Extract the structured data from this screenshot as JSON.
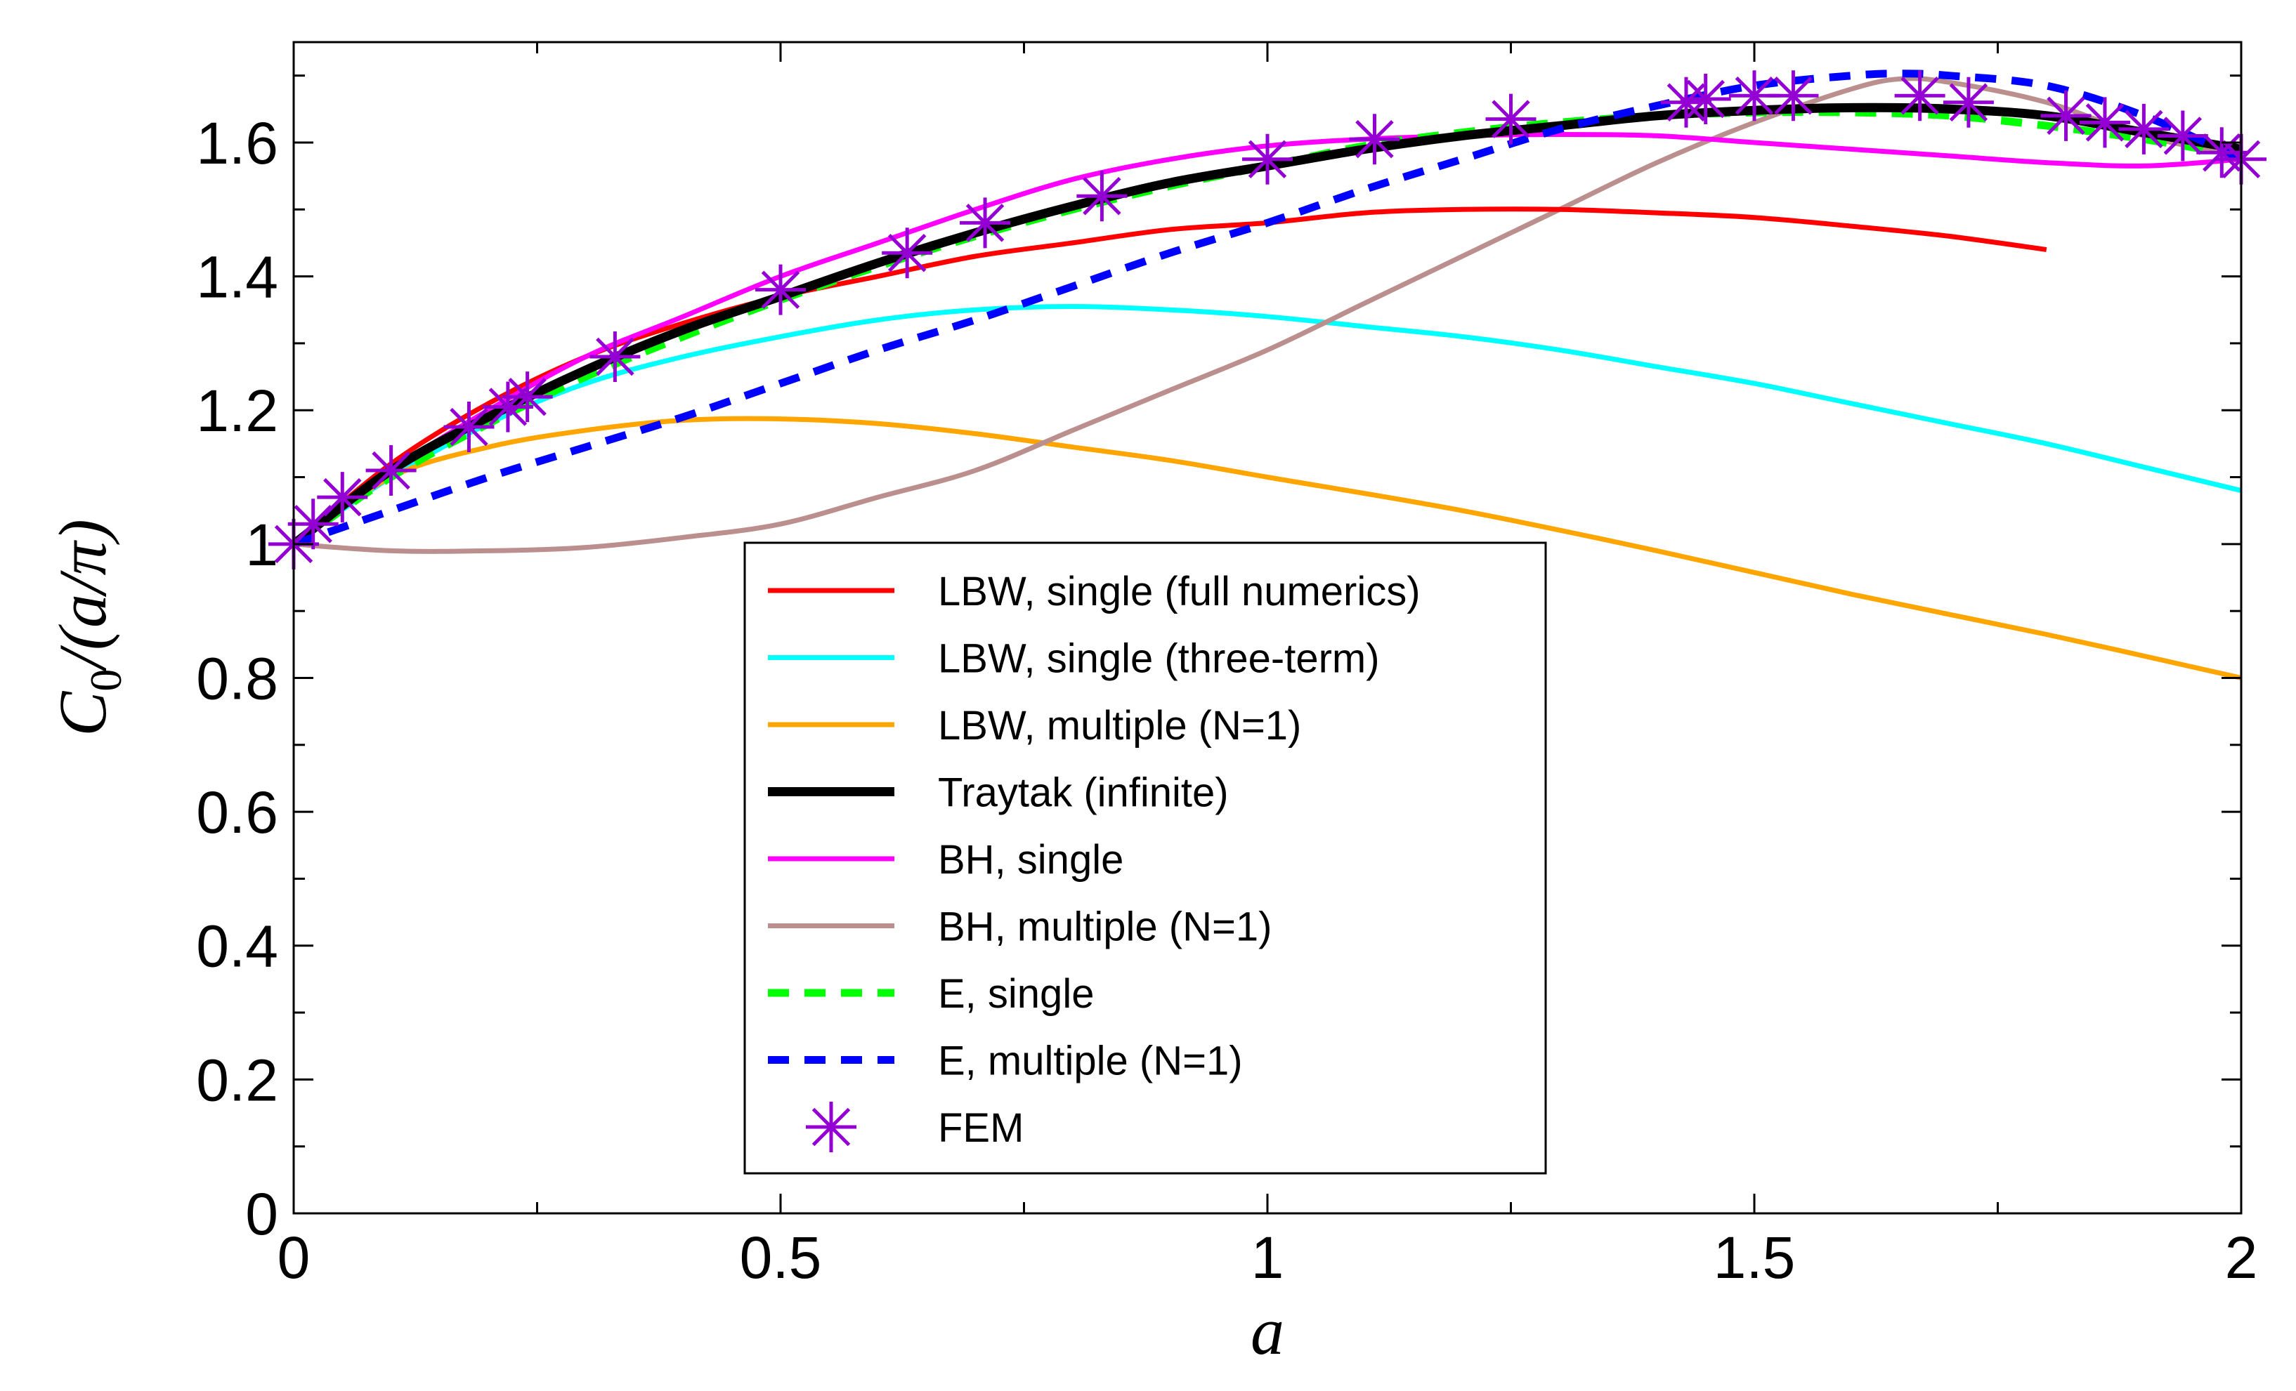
{
  "chart_data": {
    "type": "line",
    "xlabel": "a",
    "ylabel": {
      "base": "C",
      "sub": "0",
      "rest": "/(a/π)"
    },
    "xlim": [
      0,
      2
    ],
    "ylim": [
      0,
      1.75
    ],
    "xticks": [
      0,
      0.5,
      1,
      1.5,
      2
    ],
    "xtick_labels": [
      "0",
      "0.5",
      "1",
      "1.5",
      "2"
    ],
    "yticks": [
      0,
      0.2,
      0.4,
      0.6,
      0.8,
      1.0,
      1.2,
      1.4,
      1.6
    ],
    "ytick_labels": [
      "0",
      "0.2",
      "0.4",
      "0.6",
      "0.8",
      "1",
      "1.2",
      "1.4",
      "1.6"
    ],
    "grid": false,
    "legend_position": "bottom-center",
    "series": [
      {
        "name": "LBW, single (full numerics)",
        "color": "#ff0000",
        "style": "solid",
        "x": [
          0,
          0.1,
          0.2,
          0.3,
          0.4,
          0.5,
          0.6,
          0.7,
          0.8,
          0.9,
          1.0,
          1.1,
          1.2,
          1.3,
          1.4,
          1.5,
          1.6,
          1.7,
          1.8
        ],
        "y": [
          1.0,
          1.12,
          1.21,
          1.28,
          1.33,
          1.37,
          1.4,
          1.43,
          1.45,
          1.47,
          1.48,
          1.495,
          1.5,
          1.5,
          1.495,
          1.488,
          1.475,
          1.46,
          1.44
        ]
      },
      {
        "name": "LBW, single (three-term)",
        "color": "#00ffff",
        "style": "solid",
        "x": [
          0,
          0.1,
          0.2,
          0.3,
          0.4,
          0.5,
          0.6,
          0.7,
          0.8,
          0.9,
          1.0,
          1.1,
          1.2,
          1.3,
          1.4,
          1.5,
          1.6,
          1.7,
          1.8,
          1.9,
          2.0
        ],
        "y": [
          1.0,
          1.1,
          1.18,
          1.24,
          1.28,
          1.31,
          1.335,
          1.35,
          1.355,
          1.35,
          1.34,
          1.325,
          1.31,
          1.29,
          1.265,
          1.24,
          1.21,
          1.18,
          1.15,
          1.115,
          1.08
        ]
      },
      {
        "name": "LBW, multiple (N=1)",
        "color": "#ffa500",
        "style": "solid",
        "x": [
          0,
          0.1,
          0.2,
          0.3,
          0.4,
          0.5,
          0.6,
          0.7,
          0.8,
          0.9,
          1.0,
          1.2,
          1.4,
          1.6,
          1.8,
          2.0
        ],
        "y": [
          1.0,
          1.1,
          1.145,
          1.17,
          1.185,
          1.187,
          1.18,
          1.165,
          1.145,
          1.125,
          1.1,
          1.05,
          0.99,
          0.925,
          0.865,
          0.8
        ]
      },
      {
        "name": "Traytak (infinite)",
        "color": "#000000",
        "style": "thick",
        "x": [
          0,
          0.1,
          0.2,
          0.3,
          0.4,
          0.5,
          0.6,
          0.7,
          0.8,
          0.9,
          1.0,
          1.1,
          1.2,
          1.3,
          1.4,
          1.5,
          1.6,
          1.7,
          1.8,
          1.9,
          2.0
        ],
        "y": [
          1.0,
          1.11,
          1.19,
          1.26,
          1.32,
          1.37,
          1.42,
          1.465,
          1.505,
          1.54,
          1.565,
          1.59,
          1.61,
          1.625,
          1.64,
          1.648,
          1.652,
          1.65,
          1.64,
          1.615,
          1.59
        ]
      },
      {
        "name": "BH, single",
        "color": "#ff00ff",
        "style": "solid",
        "x": [
          0,
          0.1,
          0.2,
          0.3,
          0.4,
          0.5,
          0.6,
          0.7,
          0.8,
          0.9,
          1.0,
          1.1,
          1.2,
          1.3,
          1.4,
          1.5,
          1.6,
          1.7,
          1.8,
          1.9,
          2.0
        ],
        "y": [
          1.0,
          1.11,
          1.2,
          1.28,
          1.34,
          1.4,
          1.45,
          1.5,
          1.545,
          1.575,
          1.595,
          1.605,
          1.61,
          1.612,
          1.61,
          1.6,
          1.59,
          1.58,
          1.57,
          1.565,
          1.575
        ]
      },
      {
        "name": "BH, multiple (N=1)",
        "color": "#bc8f8f",
        "style": "solid",
        "x": [
          0,
          0.1,
          0.2,
          0.3,
          0.4,
          0.5,
          0.6,
          0.7,
          0.8,
          0.9,
          1.0,
          1.1,
          1.2,
          1.3,
          1.4,
          1.5,
          1.6,
          1.65,
          1.7,
          1.8,
          1.9,
          2.0
        ],
        "y": [
          1.0,
          0.99,
          0.99,
          0.995,
          1.01,
          1.03,
          1.07,
          1.11,
          1.17,
          1.23,
          1.29,
          1.36,
          1.43,
          1.5,
          1.57,
          1.63,
          1.68,
          1.695,
          1.69,
          1.66,
          1.61,
          1.58
        ]
      },
      {
        "name": "E, single",
        "color": "#00ff00",
        "style": "dashed",
        "x": [
          0,
          0.1,
          0.2,
          0.3,
          0.4,
          0.5,
          0.6,
          0.7,
          0.8,
          0.9,
          1.0,
          1.1,
          1.2,
          1.3,
          1.4,
          1.5,
          1.6,
          1.7,
          1.8,
          1.9,
          2.0
        ],
        "y": [
          1.0,
          1.1,
          1.18,
          1.25,
          1.31,
          1.365,
          1.415,
          1.46,
          1.5,
          1.535,
          1.565,
          1.595,
          1.615,
          1.63,
          1.64,
          1.645,
          1.645,
          1.64,
          1.625,
          1.605,
          1.58
        ]
      },
      {
        "name": "E, multiple (N=1)",
        "color": "#0000ff",
        "style": "dashed",
        "x": [
          0,
          0.1,
          0.2,
          0.3,
          0.4,
          0.5,
          0.6,
          0.7,
          0.8,
          0.9,
          1.0,
          1.1,
          1.2,
          1.3,
          1.4,
          1.5,
          1.6,
          1.65,
          1.7,
          1.8,
          1.9,
          2.0
        ],
        "y": [
          1.0,
          1.05,
          1.1,
          1.145,
          1.19,
          1.24,
          1.29,
          1.335,
          1.385,
          1.435,
          1.48,
          1.53,
          1.575,
          1.62,
          1.655,
          1.685,
          1.7,
          1.703,
          1.7,
          1.685,
          1.64,
          1.575
        ]
      },
      {
        "name": "FEM",
        "color": "#9400d3",
        "style": "markers",
        "x": [
          0,
          0.02,
          0.05,
          0.1,
          0.18,
          0.22,
          0.24,
          0.33,
          0.5,
          0.63,
          0.71,
          0.83,
          1.0,
          1.11,
          1.25,
          1.43,
          1.45,
          1.5,
          1.54,
          1.67,
          1.72,
          1.82,
          1.86,
          1.9,
          1.94,
          1.98,
          2.0
        ],
        "y": [
          1.0,
          1.03,
          1.07,
          1.11,
          1.175,
          1.205,
          1.22,
          1.28,
          1.38,
          1.435,
          1.48,
          1.52,
          1.575,
          1.605,
          1.635,
          1.66,
          1.665,
          1.67,
          1.67,
          1.67,
          1.66,
          1.64,
          1.63,
          1.62,
          1.61,
          1.585,
          1.575
        ]
      }
    ]
  }
}
